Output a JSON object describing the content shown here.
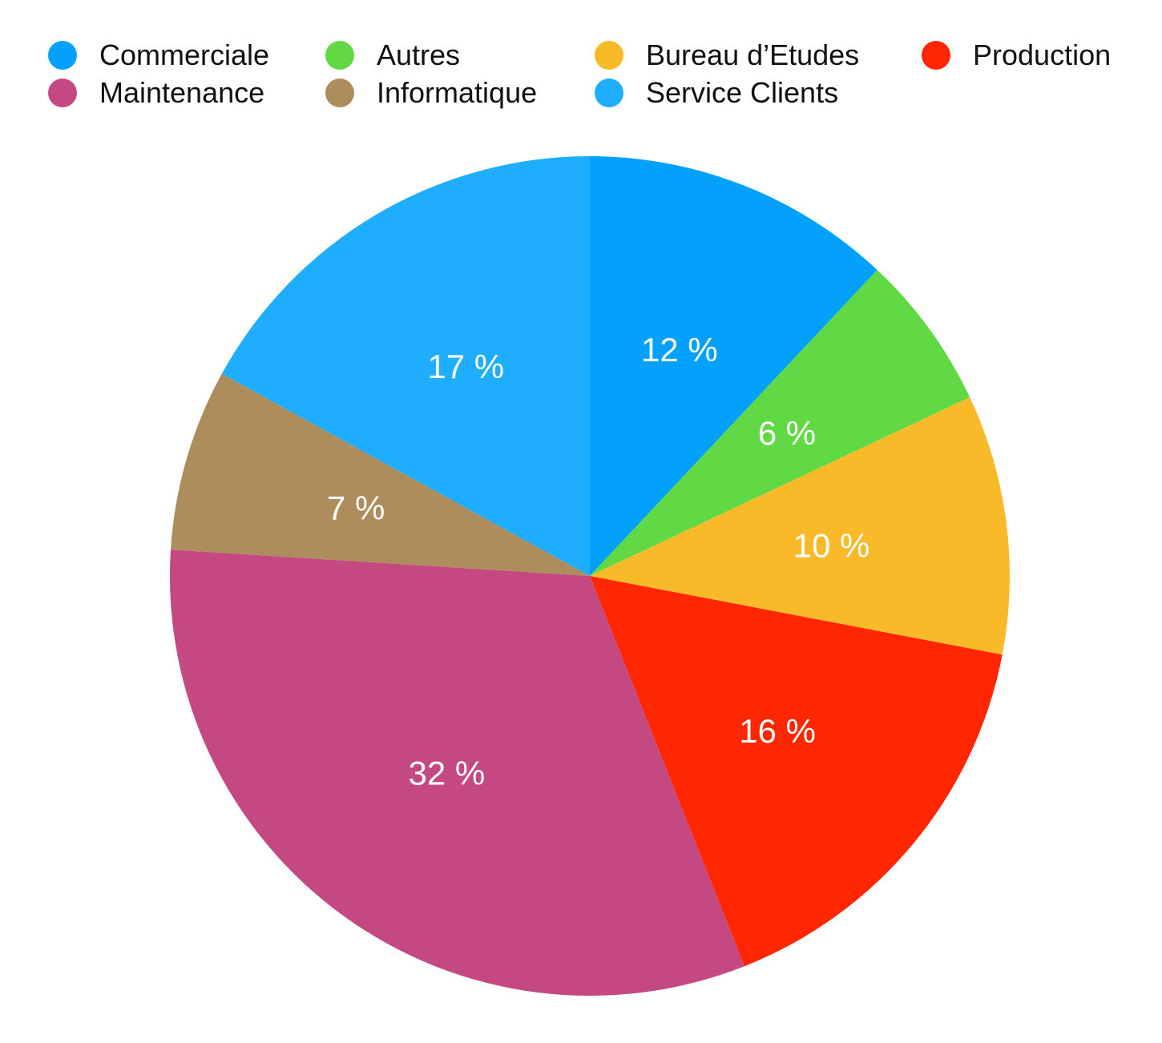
{
  "chart_data": {
    "type": "pie",
    "legend_position": "top",
    "start_angle_deg": 0,
    "direction": "clockwise",
    "slices": [
      {
        "name": "Commerciale",
        "value": 12,
        "label": "12 %",
        "color": "#03A1FC"
      },
      {
        "name": "Autres",
        "value": 6,
        "label": "6 %",
        "color": "#61D945"
      },
      {
        "name": "Bureau d’Etudes",
        "value": 10,
        "label": "10 %",
        "color": "#F9BA2A"
      },
      {
        "name": "Production",
        "value": 16,
        "label": "16 %",
        "color": "#FF2600"
      },
      {
        "name": "Maintenance",
        "value": 32,
        "label": "32 %",
        "color": "#C44983"
      },
      {
        "name": "Informatique",
        "value": 7,
        "label": "7 %",
        "color": "#AE8D5C"
      },
      {
        "name": "Service Clients",
        "value": 17,
        "label": "17 %",
        "color": "#1FADFF"
      }
    ],
    "legend_order": [
      "Commerciale",
      "Autres",
      "Bureau d’Etudes",
      "Production",
      "Maintenance",
      "Informatique",
      "Service Clients"
    ]
  }
}
